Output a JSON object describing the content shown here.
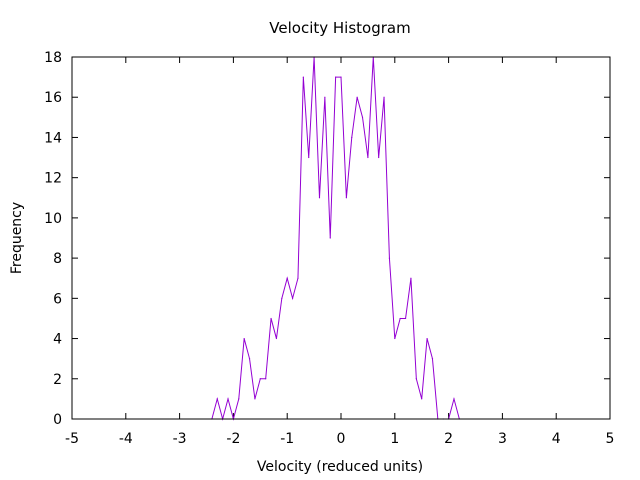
{
  "chart_data": {
    "type": "line",
    "title": "Velocity Histogram",
    "xlabel": "Velocity (reduced units)",
    "ylabel": "Frequency",
    "xlim": [
      -5,
      5
    ],
    "ylim": [
      0,
      18
    ],
    "xticks": [
      -5,
      -4,
      -3,
      -2,
      -1,
      0,
      1,
      2,
      3,
      4,
      5
    ],
    "yticks": [
      0,
      2,
      4,
      6,
      8,
      10,
      12,
      14,
      16,
      18
    ],
    "grid": false,
    "legend": "none",
    "series": [
      {
        "color": "#9400d3",
        "x": [
          -2.4,
          -2.3,
          -2.2,
          -2.1,
          -2.0,
          -1.9,
          -1.8,
          -1.7,
          -1.6,
          -1.5,
          -1.4,
          -1.3,
          -1.2,
          -1.1,
          -1.0,
          -0.9,
          -0.8,
          -0.7,
          -0.6,
          -0.5,
          -0.4,
          -0.3,
          -0.2,
          -0.1,
          0.0,
          0.1,
          0.2,
          0.3,
          0.4,
          0.5,
          0.6,
          0.7,
          0.8,
          0.9,
          1.0,
          1.1,
          1.2,
          1.3,
          1.4,
          1.5,
          1.6,
          1.7,
          1.8,
          1.9,
          2.0,
          2.1,
          2.2
        ],
        "y": [
          0,
          1,
          0,
          1,
          0,
          1,
          4,
          3,
          1,
          2,
          2,
          5,
          4,
          6,
          7,
          6,
          7,
          17,
          13,
          18,
          11,
          16,
          9,
          17,
          17,
          11,
          14,
          16,
          15,
          13,
          18,
          13,
          16,
          8,
          4,
          5,
          5,
          7,
          2,
          1,
          4,
          3,
          0,
          0,
          0,
          1,
          0
        ]
      }
    ]
  }
}
